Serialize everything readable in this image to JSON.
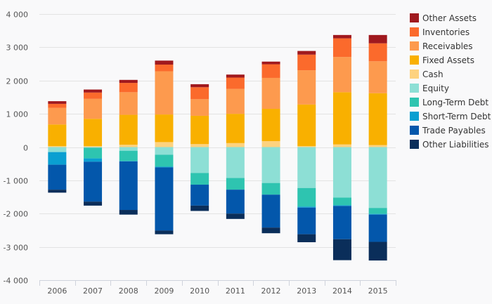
{
  "chart_data": {
    "type": "bar",
    "stacked": true,
    "title": "",
    "xlabel": "",
    "ylabel": "",
    "categories": [
      "2006",
      "2007",
      "2008",
      "2009",
      "2010",
      "2011",
      "2012",
      "2013",
      "2014",
      "2015"
    ],
    "ylim": [
      -4000,
      4000
    ],
    "y_ticks": [
      4000,
      3000,
      2000,
      1000,
      0,
      -1000,
      -2000,
      -3000,
      -4000
    ],
    "y_tick_labels": [
      "4 000",
      "3 000",
      "2 000",
      "1 000",
      "0",
      "-1 000",
      "-2 000",
      "-3 000",
      "-4 000"
    ],
    "grid": true,
    "legend_position": "right",
    "series": [
      {
        "name": "Other Assets",
        "color": "#a0191e",
        "values": [
          80,
          90,
          90,
          120,
          90,
          90,
          80,
          110,
          100,
          250
        ]
      },
      {
        "name": "Inventories",
        "color": "#fb6a2c",
        "values": [
          120,
          190,
          280,
          200,
          360,
          340,
          410,
          470,
          560,
          540
        ]
      },
      {
        "name": "Receivables",
        "color": "#fd9a4e",
        "values": [
          500,
          600,
          680,
          1300,
          500,
          750,
          930,
          1030,
          1060,
          960
        ]
      },
      {
        "name": "Fixed Assets",
        "color": "#f9b000",
        "values": [
          650,
          820,
          900,
          830,
          850,
          880,
          970,
          1250,
          1570,
          1560
        ]
      },
      {
        "name": "Cash",
        "color": "#fdd27f",
        "values": [
          30,
          30,
          70,
          150,
          90,
          120,
          180,
          30,
          80,
          60
        ]
      },
      {
        "name": "Equity",
        "color": "#8ddfd5",
        "values": [
          -150,
          -20,
          -110,
          -230,
          -780,
          -930,
          -1080,
          -1230,
          -1520,
          -1830
        ]
      },
      {
        "name": "Long-Term Debt",
        "color": "#2ec4b0",
        "values": [
          0,
          -320,
          -310,
          -360,
          -350,
          -350,
          -350,
          -560,
          -230,
          -180
        ]
      },
      {
        "name": "Short-Term Debt",
        "color": "#0a9fd1",
        "values": [
          -380,
          -100,
          -10,
          -20,
          0,
          0,
          0,
          -30,
          -20,
          -20
        ]
      },
      {
        "name": "Trade Payables",
        "color": "#0357ab",
        "values": [
          -750,
          -1200,
          -1460,
          -1900,
          -630,
          -720,
          -990,
          -800,
          -1000,
          -820
        ]
      },
      {
        "name": "Other Liabilities",
        "color": "#0a2e5a",
        "values": [
          -90,
          -120,
          -140,
          -110,
          -160,
          -160,
          -170,
          -240,
          -630,
          -560
        ]
      }
    ]
  }
}
